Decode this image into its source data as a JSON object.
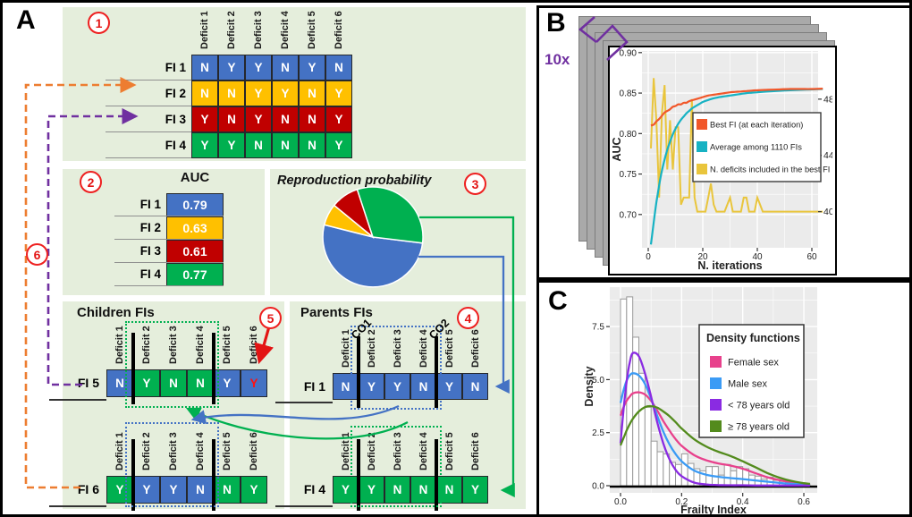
{
  "panel_a": {
    "label": "A",
    "step_labels": [
      "1",
      "2",
      "3",
      "4",
      "5",
      "6"
    ],
    "colors": {
      "blue": "#4472c4",
      "yellow": "#ffc000",
      "red": "#c00000",
      "green": "#00b050",
      "panel_bg": "#e5eedc",
      "orange_dash": "#ed7d31",
      "purple_dash": "#7030a0",
      "annotation_red": "#ee2020",
      "mutation_text": "#ff1111"
    },
    "deficit_headers": [
      "Deficit 1",
      "Deficit 2",
      "Deficit 3",
      "Deficit 4",
      "Deficit 5",
      "Deficit 6"
    ],
    "population": {
      "rows": [
        {
          "label": "FI 1",
          "color": "blue",
          "values": [
            "N",
            "Y",
            "Y",
            "N",
            "Y",
            "N"
          ]
        },
        {
          "label": "FI 2",
          "color": "yellow",
          "values": [
            "N",
            "N",
            "Y",
            "Y",
            "N",
            "Y"
          ]
        },
        {
          "label": "FI 3",
          "color": "red",
          "values": [
            "Y",
            "N",
            "Y",
            "N",
            "N",
            "Y"
          ]
        },
        {
          "label": "FI 4",
          "color": "green",
          "values": [
            "Y",
            "Y",
            "N",
            "N",
            "N",
            "Y"
          ]
        }
      ]
    },
    "auc_table": {
      "title": "AUC",
      "rows": [
        {
          "label": "FI 1",
          "color": "blue",
          "value": "0.79"
        },
        {
          "label": "FI 2",
          "color": "yellow",
          "value": "0.63"
        },
        {
          "label": "FI 3",
          "color": "red",
          "value": "0.61"
        },
        {
          "label": "FI 4",
          "color": "green",
          "value": "0.77"
        }
      ]
    },
    "pie": {
      "title": "Reproduction probability",
      "start_angle_deg": 97,
      "slices": [
        {
          "fi": "FI 1",
          "color": "blue",
          "pct": 52
        },
        {
          "fi": "FI 2",
          "color": "yellow",
          "pct": 7
        },
        {
          "fi": "FI 3",
          "color": "red",
          "pct": 9
        },
        {
          "fi": "FI 4",
          "color": "green",
          "pct": 32
        }
      ]
    },
    "children": {
      "title": "Children FIs",
      "rows": [
        {
          "label": "FI 5",
          "box_color": "green",
          "cells": [
            {
              "v": "N",
              "c": "blue"
            },
            {
              "v": "Y",
              "c": "green"
            },
            {
              "v": "N",
              "c": "green"
            },
            {
              "v": "N",
              "c": "green"
            },
            {
              "v": "Y",
              "c": "blue"
            },
            {
              "v": "Y",
              "c": "blue",
              "mutated": true
            }
          ]
        },
        {
          "label": "FI 6",
          "box_color": "blue",
          "cells": [
            {
              "v": "Y",
              "c": "green"
            },
            {
              "v": "Y",
              "c": "blue"
            },
            {
              "v": "Y",
              "c": "blue"
            },
            {
              "v": "N",
              "c": "blue"
            },
            {
              "v": "N",
              "c": "green"
            },
            {
              "v": "Y",
              "c": "green"
            }
          ]
        }
      ]
    },
    "parents": {
      "title": "Parents FIs",
      "co_labels": [
        "CO1",
        "CO2"
      ],
      "rows": [
        {
          "label": "FI 1",
          "box_color": "blue",
          "cells": [
            {
              "v": "N",
              "c": "blue"
            },
            {
              "v": "Y",
              "c": "blue"
            },
            {
              "v": "Y",
              "c": "blue"
            },
            {
              "v": "N",
              "c": "blue"
            },
            {
              "v": "Y",
              "c": "blue"
            },
            {
              "v": "N",
              "c": "blue"
            }
          ]
        },
        {
          "label": "FI 4",
          "box_color": "green",
          "cells": [
            {
              "v": "Y",
              "c": "green"
            },
            {
              "v": "Y",
              "c": "green"
            },
            {
              "v": "N",
              "c": "green"
            },
            {
              "v": "N",
              "c": "green"
            },
            {
              "v": "N",
              "c": "green"
            },
            {
              "v": "Y",
              "c": "green"
            }
          ]
        }
      ]
    }
  },
  "panel_b": {
    "label": "B",
    "stack_label": "10x",
    "chart_data": {
      "type": "line",
      "xlabel": "N. iterations",
      "ylabel": "AUC",
      "xlim": [
        -2.5,
        62
      ],
      "ylim_left": [
        0.659,
        0.902
      ],
      "x_ticks": [
        0,
        20,
        40,
        60
      ],
      "y_ticks_left": [
        0.7,
        0.75,
        0.8,
        0.85,
        0.9
      ],
      "y_ticks_right": [
        40,
        44,
        48
      ],
      "legend_position": "center-right",
      "grid": true,
      "series": [
        {
          "name": "Best FI (at each iteration)",
          "color": "#f1572a",
          "axis": "left",
          "style": "smooth",
          "x": [
            1,
            2,
            3,
            4,
            5,
            6,
            7,
            8,
            9,
            10,
            11,
            12,
            13,
            14,
            15,
            16,
            17,
            18,
            19,
            20,
            22,
            24,
            26,
            28,
            30,
            32,
            34,
            36,
            38,
            40,
            44,
            48,
            52,
            56,
            60,
            64
          ],
          "y": [
            0.81,
            0.811,
            0.815,
            0.818,
            0.822,
            0.826,
            0.828,
            0.83,
            0.833,
            0.834,
            0.836,
            0.836,
            0.838,
            0.838,
            0.84,
            0.841,
            0.842,
            0.843,
            0.844,
            0.845,
            0.847,
            0.848,
            0.849,
            0.85,
            0.851,
            0.8515,
            0.852,
            0.8525,
            0.853,
            0.8535,
            0.854,
            0.8545,
            0.855,
            0.855,
            0.855,
            0.8555
          ]
        },
        {
          "name": "Average among 1110 FIs",
          "color": "#17b2c3",
          "axis": "left",
          "style": "smooth",
          "x": [
            1,
            2,
            3,
            4,
            5,
            6,
            7,
            8,
            9,
            10,
            11,
            12,
            13,
            14,
            15,
            16,
            17,
            18,
            19,
            20,
            22,
            24,
            26,
            28,
            30,
            32,
            34,
            36,
            38,
            40,
            44,
            48,
            52,
            56,
            60,
            64
          ],
          "y": [
            0.663,
            0.69,
            0.715,
            0.736,
            0.754,
            0.768,
            0.78,
            0.79,
            0.799,
            0.806,
            0.812,
            0.817,
            0.821,
            0.825,
            0.828,
            0.831,
            0.833,
            0.835,
            0.837,
            0.839,
            0.8415,
            0.8435,
            0.845,
            0.846,
            0.847,
            0.848,
            0.849,
            0.85,
            0.8505,
            0.851,
            0.852,
            0.8528,
            0.8535,
            0.854,
            0.8545,
            0.855
          ]
        },
        {
          "name": "N. deficits included in the best FI",
          "color": "#e9c53c",
          "axis": "right",
          "style": "jagged",
          "x": [
            1,
            2,
            3,
            4,
            5,
            6,
            7,
            8,
            9,
            10,
            11,
            12,
            13,
            14,
            15,
            16,
            17,
            18,
            19,
            20,
            21,
            22,
            23,
            24,
            25,
            26,
            27,
            28,
            29,
            30,
            31,
            32,
            33,
            34,
            35,
            36,
            37,
            38,
            39,
            40,
            41,
            42,
            44,
            48,
            52,
            56,
            60,
            64
          ],
          "y": [
            44.5,
            49.5,
            46.5,
            41,
            47,
            49,
            43,
            46.5,
            43,
            46,
            46,
            40.5,
            41,
            41,
            41,
            48,
            41,
            40,
            40,
            40,
            40,
            41,
            42,
            40.5,
            40,
            40,
            40,
            40,
            40.5,
            41,
            40,
            40,
            40,
            40,
            41,
            41,
            40,
            40,
            40,
            41,
            40.5,
            40,
            40,
            40,
            40,
            40,
            40,
            40
          ]
        }
      ],
      "right_axis_alignment": {
        "n_value": 40,
        "auc_equiv": 0.7035,
        "auc_per_unit": 0.017375
      }
    }
  },
  "panel_c": {
    "label": "C",
    "chart_data": {
      "type": "histogram+density",
      "xlabel": "Frailty Index",
      "ylabel": "Density",
      "xlim": [
        -0.035,
        0.645
      ],
      "ylim": [
        0,
        9.4
      ],
      "x_ticks": [
        0.0,
        0.2,
        0.4,
        0.6
      ],
      "y_ticks": [
        0.0,
        2.5,
        5.0,
        7.5
      ],
      "grid": true,
      "histogram": {
        "bin_start": 0,
        "bin_width": 0.02,
        "fill": "#ffffff",
        "stroke": "#999999",
        "counts": [
          8.8,
          8.9,
          7.0,
          5.3,
          3.7,
          2.1,
          1.6,
          1.5,
          1.1,
          1.0,
          1.5,
          1.05,
          0.8,
          0.7,
          0.9,
          0.9,
          0.5,
          1.0,
          0.7,
          0.9,
          0.8,
          0.5,
          0.45,
          0.3,
          0.4,
          0.25,
          0.2,
          0.15,
          0.12,
          0.1,
          0.08
        ]
      },
      "legend_title": "Density functions",
      "curve_x": [
        0,
        0.01,
        0.02,
        0.03,
        0.04,
        0.06,
        0.08,
        0.1,
        0.12,
        0.14,
        0.16,
        0.18,
        0.2,
        0.24,
        0.28,
        0.32,
        0.36,
        0.4,
        0.44,
        0.48,
        0.52,
        0.56,
        0.6,
        0.62
      ],
      "series": [
        {
          "name": "Female sex",
          "color": "#e8418c",
          "y": [
            3.3,
            3.7,
            4.0,
            4.2,
            4.35,
            4.4,
            4.3,
            4.0,
            3.55,
            3.05,
            2.6,
            2.2,
            1.88,
            1.45,
            1.2,
            1.05,
            0.95,
            0.8,
            0.6,
            0.4,
            0.26,
            0.15,
            0.1,
            0.08
          ]
        },
        {
          "name": "Male sex",
          "color": "#3b9bf5",
          "y": [
            3.9,
            4.5,
            4.95,
            5.2,
            5.3,
            5.2,
            4.8,
            4.1,
            3.3,
            2.55,
            1.95,
            1.5,
            1.15,
            0.72,
            0.52,
            0.42,
            0.36,
            0.31,
            0.25,
            0.19,
            0.13,
            0.09,
            0.06,
            0.05
          ]
        },
        {
          "name": "< 78 years old",
          "color": "#8a2be2",
          "y": [
            2.0,
            3.6,
            4.9,
            5.8,
            6.25,
            6.1,
            5.3,
            4.2,
            3.0,
            2.0,
            1.25,
            0.75,
            0.45,
            0.15,
            0.06,
            0.03,
            0.02,
            0.02,
            0.01,
            0.01,
            0.01,
            0.01,
            0.01,
            0.01
          ]
        },
        {
          "name": "≥ 78 years old",
          "color": "#538b1d",
          "y": [
            1.9,
            2.25,
            2.6,
            2.9,
            3.15,
            3.5,
            3.7,
            3.75,
            3.68,
            3.5,
            3.28,
            3.0,
            2.7,
            2.2,
            1.85,
            1.6,
            1.4,
            1.15,
            0.88,
            0.6,
            0.38,
            0.22,
            0.12,
            0.09
          ]
        }
      ]
    }
  }
}
